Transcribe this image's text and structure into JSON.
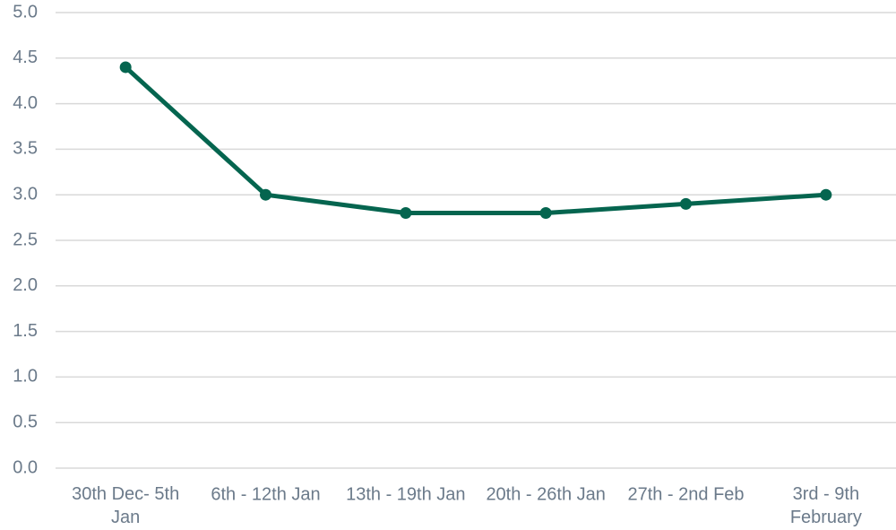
{
  "chart_data": {
    "type": "line",
    "categories": [
      "30th Dec- 5th Jan",
      "6th - 12th Jan",
      "13th - 19th Jan",
      "20th - 26th Jan",
      "27th - 2nd Feb",
      "3rd - 9th February"
    ],
    "series": [
      {
        "color": "#05654f",
        "values": [
          4.4,
          3.0,
          2.8,
          2.8,
          2.9,
          3.0
        ]
      }
    ],
    "ylim": [
      0,
      5
    ],
    "yticks": [
      {
        "value": 0,
        "label": "0.0"
      },
      0.5,
      {
        "value": 1,
        "label": "1.0"
      },
      1.5,
      {
        "value": 2,
        "label": "2.0"
      },
      2.5,
      {
        "value": 3,
        "label": "3.0"
      },
      3.5,
      {
        "value": 4,
        "label": "4.0"
      },
      4.5,
      {
        "value": 5,
        "label": "5.0"
      }
    ],
    "grid": true
  }
}
